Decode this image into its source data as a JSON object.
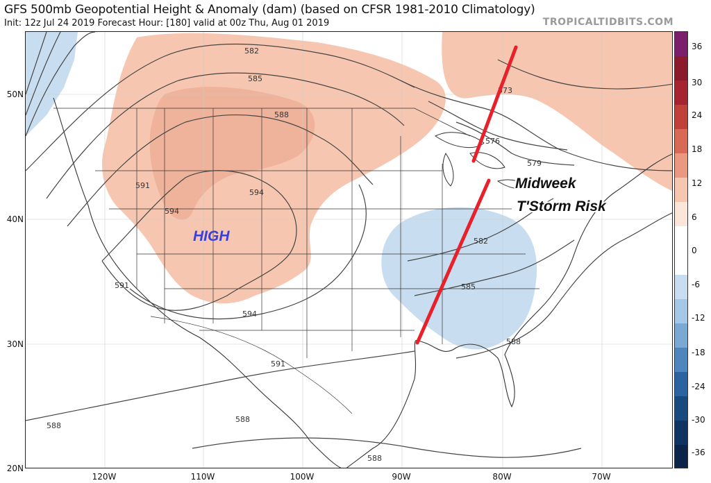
{
  "header": {
    "title": "GFS 500mb Geopotential Height & Anomaly (dam) (based on CFSR 1981-2010 Climatology)",
    "subtitle": "Init: 12z Jul 24 2019   Forecast Hour: [180]   valid at 00z Thu, Aug 01 2019",
    "brand": "TROPICALTIDBITS.COM"
  },
  "axes": {
    "lat_labels": [
      "50N",
      "40N",
      "30N",
      "20N"
    ],
    "lon_labels": [
      "120W",
      "110W",
      "100W",
      "90W",
      "80W",
      "70W"
    ]
  },
  "colorbar": {
    "labels": [
      "36",
      "30",
      "24",
      "18",
      "12",
      "6",
      "0",
      "-6",
      "-12",
      "-18",
      "-24",
      "-30",
      "-36"
    ],
    "colors": [
      "#7a1f6b",
      "#8b1a2c",
      "#a52430",
      "#c0403a",
      "#d86a55",
      "#eb9880",
      "#f6c6b0",
      "#fce6da",
      "#ffffff",
      "#ffffff",
      "#c8def0",
      "#a4c8e6",
      "#7aa9d4",
      "#4f86bd",
      "#2b64a1",
      "#184a80",
      "#0f3362",
      "#0a244a"
    ]
  },
  "contour_labels": [
    "582",
    "585",
    "588",
    "591",
    "594",
    "594",
    "591",
    "594",
    "573",
    "576",
    "579",
    "582",
    "585",
    "588",
    "591",
    "588",
    "588",
    "588"
  ],
  "annotations": {
    "high": "HIGH",
    "risk_line1": "Midweek",
    "risk_line2": "T'Storm Risk"
  },
  "accent_colors": {
    "warm_anomaly": "#f6c6b0",
    "cool_anomaly": "#c8def0",
    "trough_line": "#e8202a",
    "high_label": "#3a3fd8"
  }
}
